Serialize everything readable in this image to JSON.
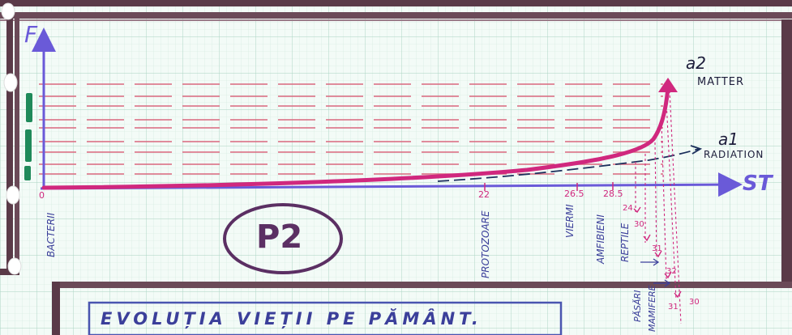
{
  "axes": {
    "y_label": "F",
    "x_label": "ST"
  },
  "curves": {
    "a2": {
      "name": "a2",
      "caption": "MATTER",
      "color": "#d0287e"
    },
    "a1": {
      "name": "a1",
      "caption": "RADIATION",
      "color": "#1c2f5c"
    }
  },
  "origin_label": "0",
  "tick_values": [
    "22",
    "26.5",
    "28.5"
  ],
  "stage_labels": {
    "bacteria": "BACTERII",
    "protozoa": "PROTOZOARE",
    "worms": "VIERMI",
    "amphibians": "AMFIBIENI",
    "reptiles": "REPTILE",
    "birds": "PĂSĂRI",
    "mammals": "MAMIFERE"
  },
  "side_marks": [
    "24",
    "30",
    "31",
    "32",
    "31",
    "30"
  ],
  "badge": "P2",
  "title": "EVOLUȚIA VIEȚII PE PĂMÂNT.",
  "colors": {
    "frame": "#5a3a48",
    "axis": "#6a5ad8",
    "grid": "#b9dccd",
    "dash": "#d9677f",
    "handwriting": "#3b3f9a",
    "badge": "#5b2f63"
  }
}
